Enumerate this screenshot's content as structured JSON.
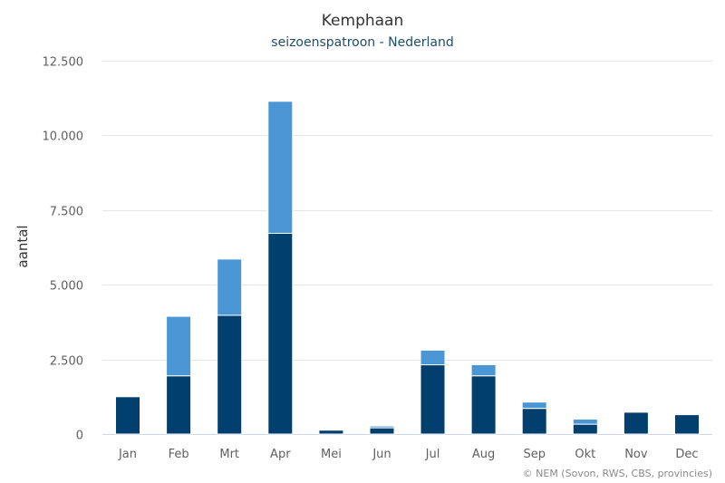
{
  "chart_data": {
    "type": "bar",
    "stacked": true,
    "title": "Kemphaan",
    "subtitle": "seizoenspatroon - Nederland",
    "ylabel": "aantal",
    "xlabel": "",
    "categories": [
      "Jan",
      "Feb",
      "Mrt",
      "Apr",
      "Mei",
      "Jun",
      "Jul",
      "Aug",
      "Sep",
      "Okt",
      "Nov",
      "Dec"
    ],
    "series": [
      {
        "values": [
          1250,
          1950,
          3980,
          6720,
          130,
          210,
          2320,
          1950,
          860,
          330,
          730,
          650
        ],
        "color": "#003f6e"
      },
      {
        "values": [
          0,
          1990,
          1880,
          4420,
          0,
          60,
          490,
          370,
          210,
          170,
          0,
          0
        ],
        "color": "#4b96d4"
      }
    ],
    "ylim": [
      0,
      12500
    ],
    "yticks": [
      0,
      2500,
      5000,
      7500,
      10000,
      12500
    ],
    "ytick_labels": [
      "0",
      "2.500",
      "5.000",
      "7.500",
      "10.000",
      "12.500"
    ],
    "grid": true,
    "legend": "none"
  },
  "credit": "© NEM (Sovon, RWS, CBS, provincies)"
}
